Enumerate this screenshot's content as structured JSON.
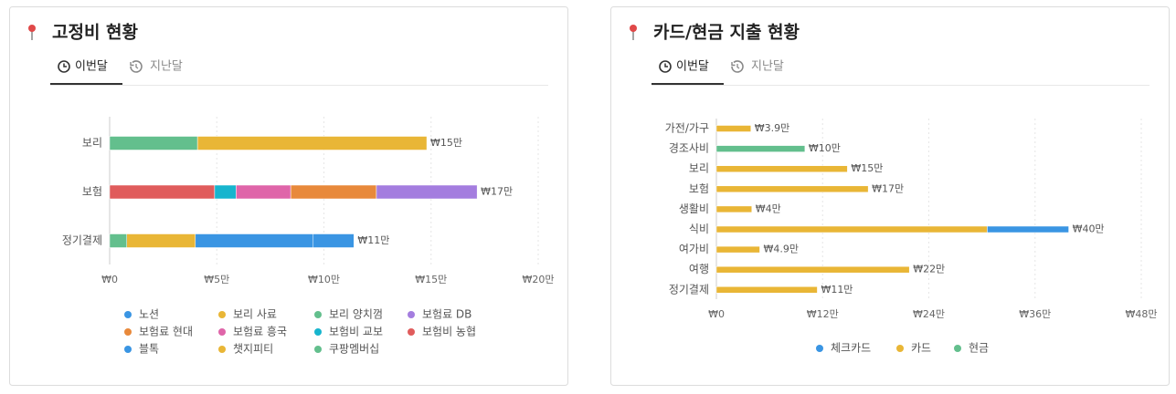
{
  "panels": [
    {
      "tabs": [
        "이번달",
        "지난달"
      ]
    },
    {
      "tabs": [
        "이번달",
        "지난달"
      ]
    }
  ],
  "chart_data": [
    {
      "type": "bar",
      "orientation": "horizontal",
      "stacked": true,
      "title": "고정비 현황",
      "categories": [
        "보리",
        "보험",
        "정기결제"
      ],
      "series": [
        {
          "name": "노션",
          "color": "#3a95e3",
          "values": [
            null,
            null,
            19000
          ]
        },
        {
          "name": "보리 사료",
          "color": "#e9b636",
          "values": [
            107000,
            null,
            null
          ]
        },
        {
          "name": "보리 양치껌",
          "color": "#63bf8d",
          "values": [
            41000,
            null,
            null
          ]
        },
        {
          "name": "보험료 DB",
          "color": "#a47ddf",
          "values": [
            null,
            47000,
            null
          ]
        },
        {
          "name": "보험료 현대",
          "color": "#e8893b",
          "values": [
            null,
            40000,
            null
          ]
        },
        {
          "name": "보험료 흥국",
          "color": "#df65a9",
          "values": [
            null,
            25500,
            null
          ]
        },
        {
          "name": "보험비 교보",
          "color": "#17b5ce",
          "values": [
            null,
            10000,
            null
          ]
        },
        {
          "name": "보험비 농협",
          "color": "#e05c5c",
          "values": [
            null,
            49000,
            null
          ]
        },
        {
          "name": "블톡",
          "color": "#3a95e3",
          "values": [
            null,
            null,
            55000
          ]
        },
        {
          "name": "챗지피티",
          "color": "#e9b636",
          "values": [
            null,
            null,
            32000
          ]
        },
        {
          "name": "쿠팡멤버십",
          "color": "#63bf8d",
          "values": [
            null,
            null,
            8000
          ]
        }
      ],
      "total_labels": [
        "₩15만",
        "₩17만",
        "₩11만"
      ],
      "xlim": [
        0,
        200000
      ],
      "xticks": [
        {
          "value": 0,
          "label": "₩0"
        },
        {
          "value": 50000,
          "label": "₩5만"
        },
        {
          "value": 100000,
          "label": "₩10만"
        },
        {
          "value": 150000,
          "label": "₩15만"
        },
        {
          "value": 200000,
          "label": "₩20만"
        }
      ],
      "grid": true,
      "legend": "bottom"
    },
    {
      "type": "bar",
      "orientation": "horizontal",
      "stacked": true,
      "title": "카드/현금 지출 현황",
      "categories": [
        "가전/가구",
        "경조사비",
        "보리",
        "보험",
        "생활비",
        "식비",
        "여가비",
        "여행",
        "정기결제"
      ],
      "series": [
        {
          "name": "체크카드",
          "color": "#3a95e3",
          "values": [
            null,
            null,
            null,
            null,
            null,
            92000,
            null,
            null,
            null
          ]
        },
        {
          "name": "카드",
          "color": "#e9b636",
          "values": [
            39000,
            null,
            148000,
            171500,
            40000,
            306000,
            49000,
            218000,
            114000
          ]
        },
        {
          "name": "현금",
          "color": "#63bf8d",
          "values": [
            null,
            100000,
            null,
            null,
            null,
            null,
            null,
            null,
            null
          ]
        }
      ],
      "total_labels": [
        "₩3.9만",
        "₩10만",
        "₩15만",
        "₩17만",
        "₩4만",
        "₩40만",
        "₩4.9만",
        "₩22만",
        "₩11만"
      ],
      "xlim": [
        0,
        480000
      ],
      "xticks": [
        {
          "value": 0,
          "label": "₩0"
        },
        {
          "value": 120000,
          "label": "₩12만"
        },
        {
          "value": 240000,
          "label": "₩24만"
        },
        {
          "value": 360000,
          "label": "₩36만"
        },
        {
          "value": 480000,
          "label": "₩48만"
        }
      ],
      "grid": true,
      "legend": "bottom"
    }
  ]
}
